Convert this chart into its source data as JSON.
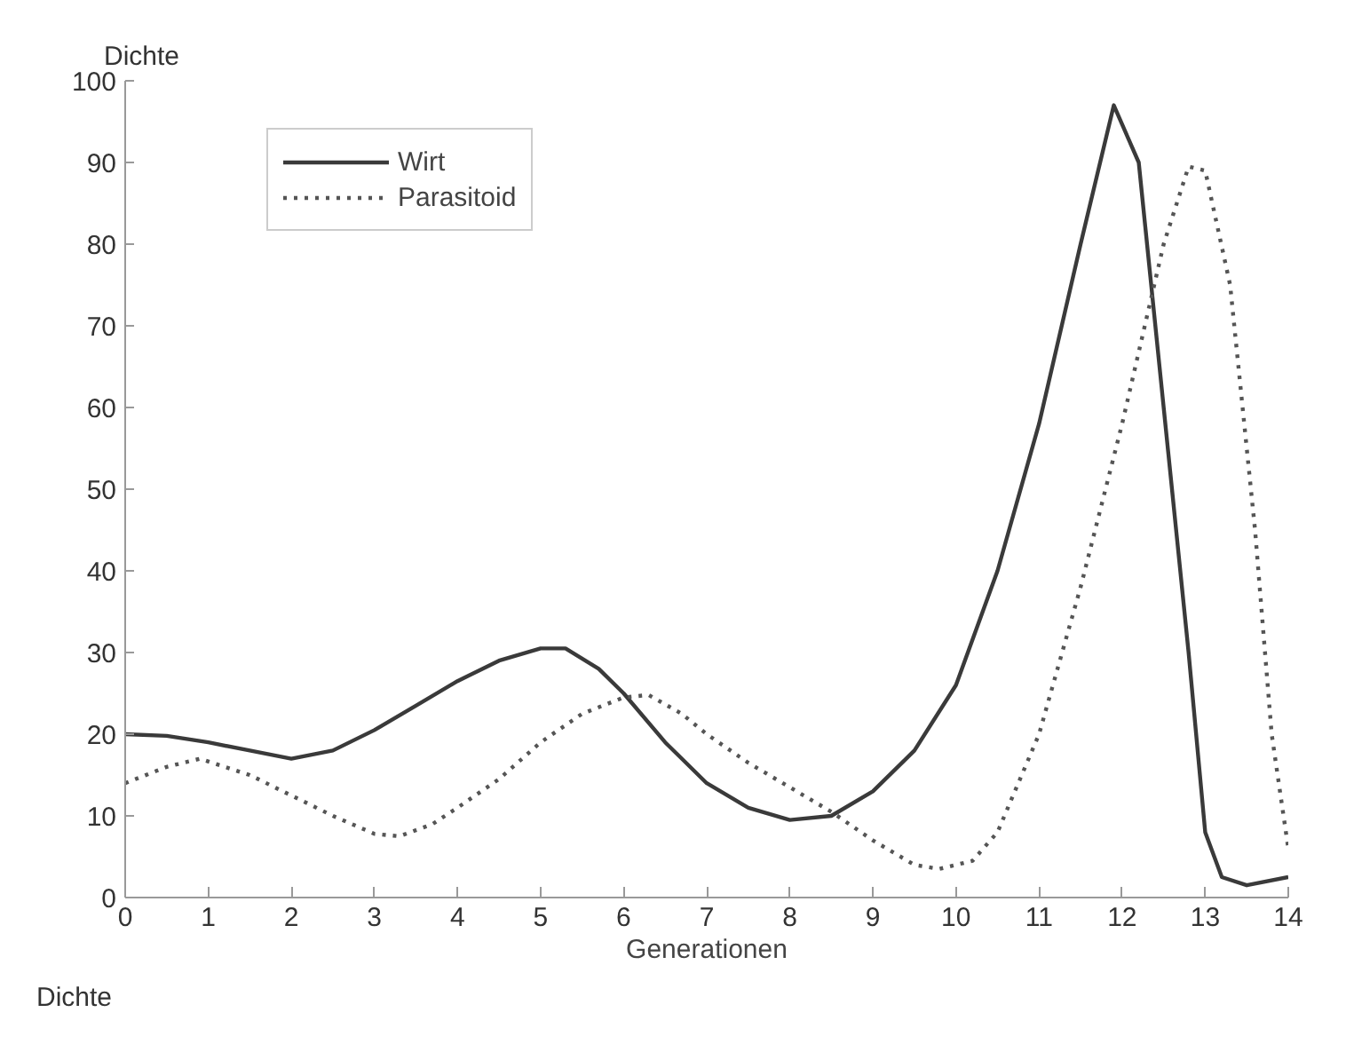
{
  "chart_data": {
    "type": "line",
    "xlabel": "Generationen",
    "ylabel": "Dichte",
    "annotations": [
      "Dichte"
    ],
    "xlim": [
      0,
      14
    ],
    "ylim": [
      0,
      100
    ],
    "xticks": [
      0,
      1,
      2,
      3,
      4,
      5,
      6,
      7,
      8,
      9,
      10,
      11,
      12,
      13,
      14
    ],
    "yticks": [
      0,
      10,
      20,
      30,
      40,
      50,
      60,
      70,
      80,
      90,
      100
    ],
    "grid": false,
    "legend": "top left",
    "marker": "none",
    "series": [
      {
        "name": "Wirt",
        "color": "#3a3a3a",
        "line_style": "solid",
        "x": [
          0,
          0.5,
          1,
          1.5,
          2,
          2.5,
          3,
          3.5,
          4,
          4.5,
          5,
          5.3,
          5.7,
          6,
          6.5,
          7,
          7.5,
          8,
          8.5,
          9,
          9.5,
          10,
          10.5,
          11,
          11.5,
          11.9,
          12.2,
          12.5,
          12.8,
          13,
          13.2,
          13.5,
          14
        ],
        "values": [
          20,
          19.8,
          19,
          18,
          17,
          18,
          20.5,
          23.5,
          26.5,
          29,
          30.5,
          30.5,
          28,
          25,
          19,
          14,
          11,
          9.5,
          10,
          13,
          18,
          26,
          40,
          58,
          80,
          97,
          90,
          60,
          30,
          8,
          2.5,
          1.5,
          2.5
        ]
      },
      {
        "name": "Parasitoid",
        "color": "#555555",
        "line_style": "dotted",
        "x": [
          0,
          0.5,
          0.9,
          1.5,
          2,
          2.5,
          3,
          3.3,
          3.7,
          4,
          4.5,
          5,
          5.5,
          6,
          6.3,
          6.7,
          7,
          7.5,
          8,
          8.5,
          9,
          9.5,
          9.8,
          10.2,
          10.5,
          11,
          11.5,
          12,
          12.5,
          12.8,
          13,
          13.3,
          13.6,
          13.8,
          14
        ],
        "values": [
          14,
          16,
          17,
          15,
          12.5,
          10,
          7.8,
          7.5,
          9,
          11,
          14.5,
          19,
          22.5,
          24.5,
          24.8,
          22.5,
          20,
          16.5,
          13.5,
          10.5,
          7,
          4,
          3.5,
          4.5,
          8,
          20,
          38,
          58,
          80,
          89.5,
          89,
          75,
          45,
          20,
          6
        ]
      }
    ]
  }
}
